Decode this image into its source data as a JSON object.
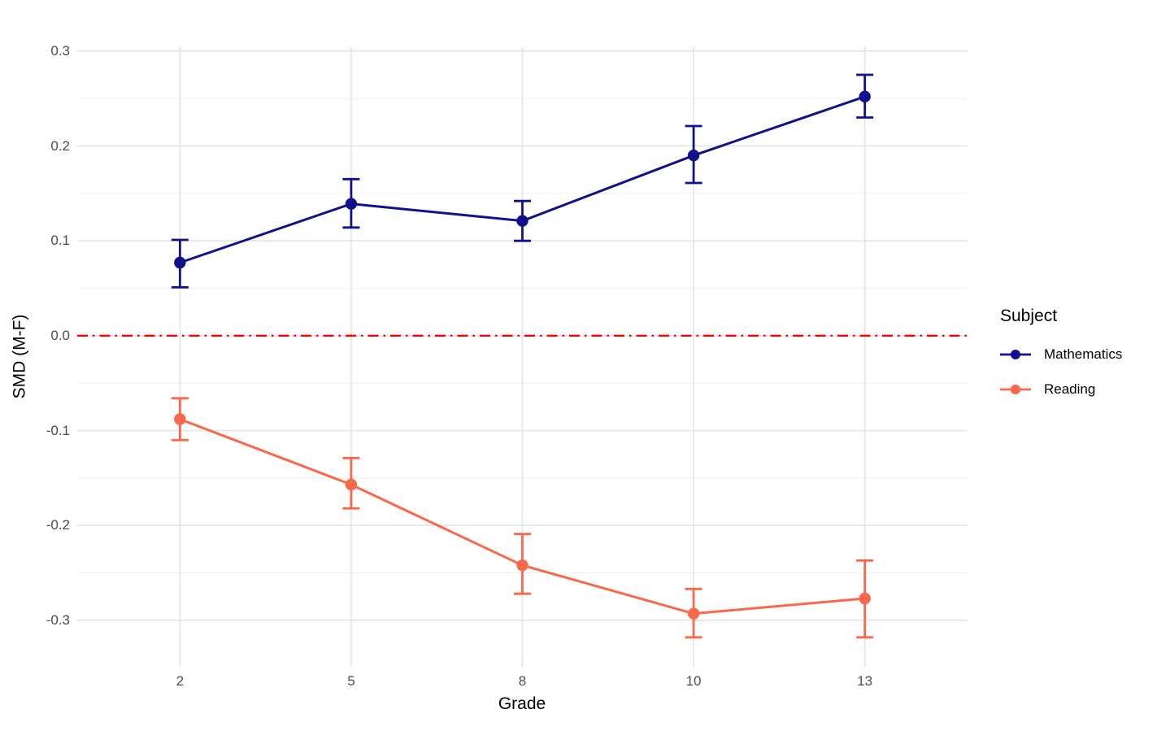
{
  "figure": {
    "legend": {
      "title": "Subject",
      "position": "right"
    }
  },
  "colors": {
    "background": "#FFFFFF",
    "grid_major": "#E4E4E4",
    "grid_minor": "#F0F0F0",
    "tick_label": "#4D4D4D",
    "axis_title": "#000000",
    "reference_line": "#FF0000"
  },
  "chart_data": {
    "type": "line",
    "title": "",
    "xlabel": "Grade",
    "ylabel": "SMD (M-F)",
    "categories": [
      "2",
      "5",
      "8",
      "10",
      "13"
    ],
    "y_tick_labels": [
      "0.3",
      "0.2",
      "0.1",
      "0.0",
      "-0.1",
      "-0.2",
      "-0.3"
    ],
    "y_ticks": [
      0.3,
      0.2,
      0.1,
      0.0,
      -0.1,
      -0.2,
      -0.3
    ],
    "y_minor_ticks": [
      0.25,
      0.15,
      0.05,
      -0.05,
      -0.15,
      -0.25
    ],
    "ylim": [
      -0.349,
      0.305
    ],
    "grid": true,
    "legend_position": "right",
    "reference_line": {
      "y": 0.0,
      "style": "dash-dot",
      "color": "#FF0000"
    },
    "series": [
      {
        "name": "Mathematics",
        "color": "#11118F",
        "values": [
          0.077,
          0.139,
          0.121,
          0.19,
          0.252
        ],
        "ci_low": [
          0.051,
          0.114,
          0.1,
          0.161,
          0.23
        ],
        "ci_high": [
          0.101,
          0.165,
          0.142,
          0.221,
          0.275
        ]
      },
      {
        "name": "Reading",
        "color": "#F9684A",
        "values": [
          -0.088,
          -0.157,
          -0.242,
          -0.293,
          -0.277
        ],
        "ci_low": [
          -0.11,
          -0.182,
          -0.272,
          -0.318,
          -0.318
        ],
        "ci_high": [
          -0.066,
          -0.129,
          -0.209,
          -0.267,
          -0.237
        ]
      }
    ]
  }
}
